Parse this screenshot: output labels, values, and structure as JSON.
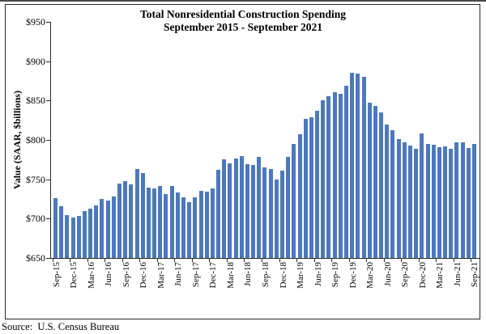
{
  "chart_data": {
    "type": "bar",
    "title": "Total Nonresidential Construction Spending",
    "subtitle": "September 2015 - September 2021",
    "ylabel": "Value (SAAR, $billions)",
    "source": "Source:  U.S. Census Bureau",
    "ylim": [
      650,
      950
    ],
    "y_tick_step": 50,
    "y_tick_labels": [
      "$650",
      "$700",
      "$750",
      "$800",
      "$850",
      "$900",
      "$950"
    ],
    "x_label_every": 3,
    "grid": false,
    "legend": "none",
    "bar_color": "#4d79bb",
    "axis_color": "#2a2a2a",
    "categories": [
      "Sep-15",
      "Oct-15",
      "Nov-15",
      "Dec-15",
      "Jan-16",
      "Feb-16",
      "Mar-16",
      "Apr-16",
      "May-16",
      "Jun-16",
      "Jul-16",
      "Aug-16",
      "Sep-16",
      "Oct-16",
      "Nov-16",
      "Dec-16",
      "Jan-17",
      "Feb-17",
      "Mar-17",
      "Apr-17",
      "May-17",
      "Jun-17",
      "Jul-17",
      "Aug-17",
      "Sep-17",
      "Oct-17",
      "Nov-17",
      "Dec-17",
      "Jan-18",
      "Feb-18",
      "Mar-18",
      "Apr-18",
      "May-18",
      "Jun-18",
      "Jul-18",
      "Aug-18",
      "Sep-18",
      "Oct-18",
      "Nov-18",
      "Dec-18",
      "Jan-19",
      "Feb-19",
      "Mar-19",
      "Apr-19",
      "May-19",
      "Jun-19",
      "Jul-19",
      "Aug-19",
      "Sep-19",
      "Oct-19",
      "Nov-19",
      "Dec-19",
      "Jan-20",
      "Feb-20",
      "Mar-20",
      "Apr-20",
      "May-20",
      "Jun-20",
      "Jul-20",
      "Aug-20",
      "Sep-20",
      "Oct-20",
      "Nov-20",
      "Dec-20",
      "Jan-21",
      "Feb-21",
      "Mar-21",
      "Apr-21",
      "May-21",
      "Jun-21",
      "Jul-21",
      "Aug-21",
      "Sep-21"
    ],
    "values": [
      726,
      716,
      704,
      701,
      703,
      710,
      713,
      717,
      725,
      723,
      728,
      745,
      748,
      743,
      763,
      758,
      739,
      738,
      741,
      731,
      741,
      733,
      727,
      721,
      727,
      735,
      734,
      738,
      762,
      775,
      770,
      776,
      779,
      769,
      768,
      778,
      765,
      763,
      750,
      761,
      778,
      795,
      807,
      827,
      829,
      837,
      850,
      855,
      861,
      859,
      869,
      885,
      884,
      880,
      847,
      843,
      835,
      820,
      812,
      801,
      797,
      793,
      789,
      808,
      795,
      794,
      791,
      792,
      789,
      797,
      797,
      790,
      795
    ]
  }
}
